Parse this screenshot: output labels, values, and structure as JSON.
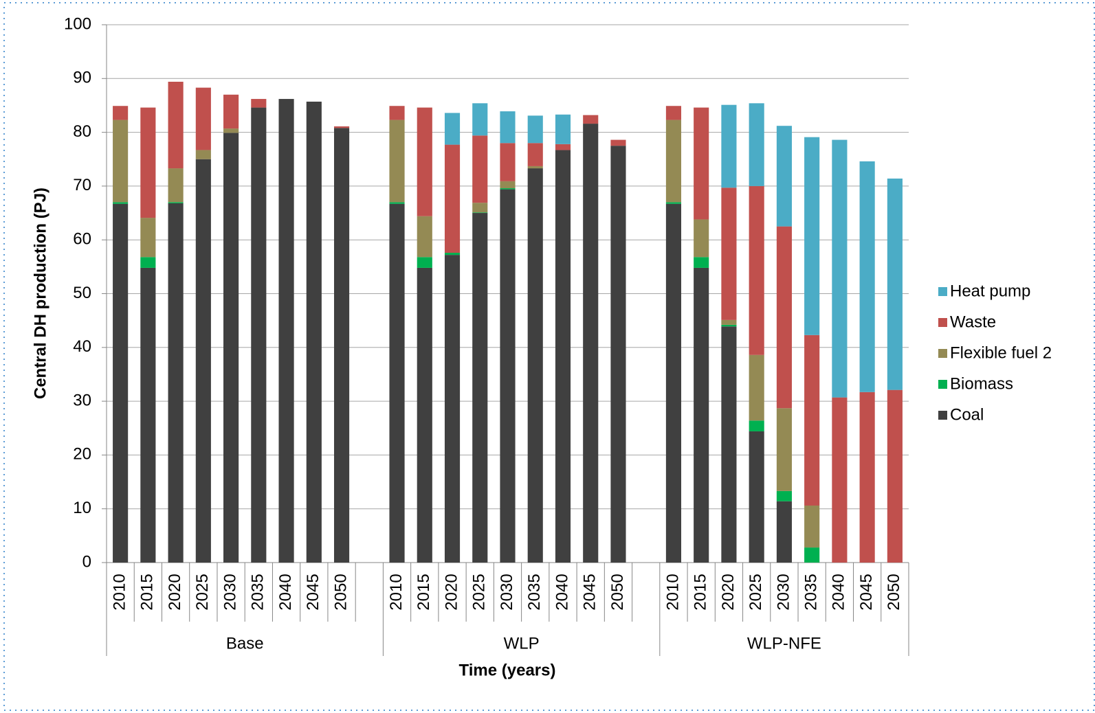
{
  "chart_data": {
    "type": "stacked_bar",
    "y_label": "Central DH production (PJ)",
    "x_label": "Time (years)",
    "categories": [
      "2010",
      "2015",
      "2020",
      "2025",
      "2030",
      "2035",
      "2040",
      "2045",
      "2050",
      null,
      "2010",
      "2015",
      "2020",
      "2025",
      "2030",
      "2035",
      "2040",
      "2045",
      "2050",
      null,
      "2010",
      "2015",
      "2020",
      "2025",
      "2030",
      "2035",
      "2040",
      "2045",
      "2050"
    ],
    "groups": [
      "Base",
      "WLP",
      "WLP-NFE"
    ],
    "series": [
      {
        "name": "Coal",
        "color": "#404040",
        "values": [
          66.7,
          54.8,
          66.8,
          75.0,
          79.9,
          84.6,
          86.2,
          85.7,
          80.8,
          null,
          66.7,
          54.8,
          57.2,
          65.0,
          69.4,
          73.3,
          76.7,
          81.6,
          77.5,
          null,
          66.7,
          54.8,
          43.9,
          24.4,
          11.4,
          0,
          0,
          0,
          0
        ]
      },
      {
        "name": "Biomass",
        "color": "#00b050",
        "values": [
          0.3,
          2.0,
          0.2,
          0,
          0,
          0,
          0,
          0,
          0,
          null,
          0.3,
          2.0,
          0.4,
          0.1,
          0.2,
          0,
          0,
          0,
          0,
          null,
          0.3,
          2.0,
          0.3,
          2.0,
          1.9,
          2.8,
          0,
          0,
          0
        ]
      },
      {
        "name": "Flexible fuel 2",
        "color": "#948a54",
        "values": [
          15.3,
          7.3,
          6.3,
          1.7,
          0.8,
          0,
          0,
          0,
          0,
          null,
          15.3,
          7.6,
          0,
          1.8,
          1.3,
          0.4,
          0,
          0,
          0,
          null,
          15.3,
          7.0,
          0.9,
          12.2,
          15.4,
          7.8,
          0,
          0,
          0
        ]
      },
      {
        "name": "Waste",
        "color": "#c0504d",
        "values": [
          2.6,
          20.5,
          16.1,
          11.6,
          6.3,
          1.6,
          0,
          0,
          0.3,
          null,
          2.6,
          20.2,
          20.1,
          12.5,
          7.1,
          4.3,
          1.1,
          1.6,
          1.1,
          null,
          2.6,
          20.8,
          24.6,
          31.4,
          33.8,
          31.7,
          30.7,
          31.7,
          32.1
        ]
      },
      {
        "name": "Heat pump",
        "color": "#4bacc6",
        "values": [
          0,
          0,
          0,
          0,
          0,
          0,
          0,
          0,
          0,
          null,
          0,
          0,
          5.9,
          6.0,
          5.9,
          5.1,
          5.5,
          0,
          0,
          null,
          0,
          0,
          15.4,
          15.4,
          18.7,
          36.8,
          47.9,
          42.9,
          39.3
        ]
      }
    ],
    "ylim": [
      0,
      100
    ],
    "yticks": [
      0,
      10,
      20,
      30,
      40,
      50,
      60,
      70,
      80,
      90,
      100
    ],
    "grid": true,
    "legend": "right"
  }
}
